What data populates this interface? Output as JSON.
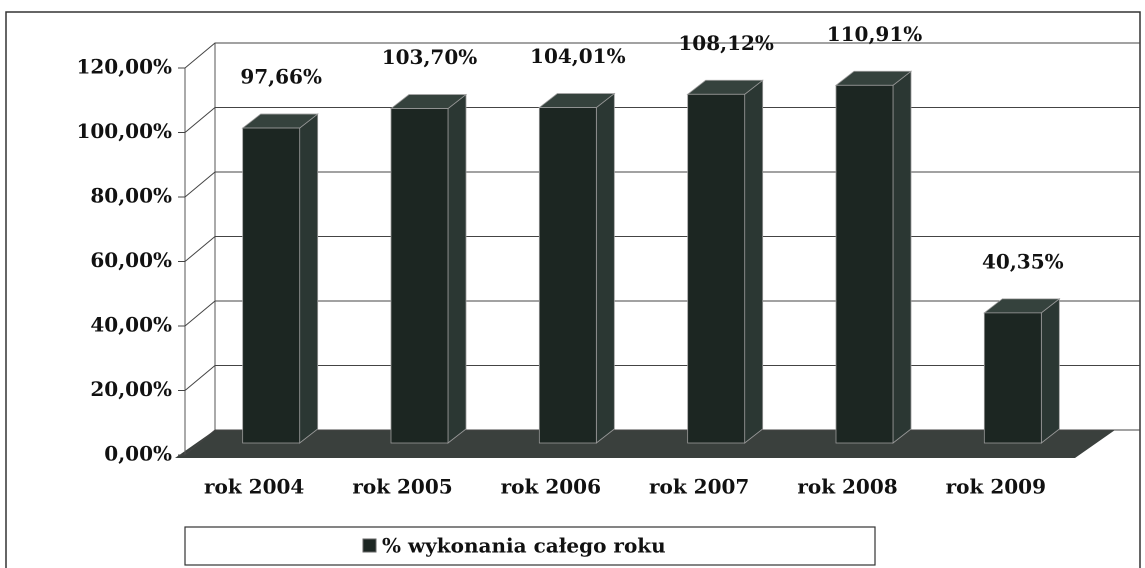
{
  "chart_data": {
    "type": "bar3d",
    "categories": [
      "rok 2004",
      "rok 2005",
      "rok 2006",
      "rok 2007",
      "rok 2008",
      "rok 2009"
    ],
    "series": [
      {
        "name": "% wykonania całego roku",
        "color": "#1c2622",
        "values": [
          97.66,
          103.7,
          104.01,
          108.12,
          110.91,
          40.35
        ],
        "value_labels": [
          "97,66%",
          "103,70%",
          "104,01%",
          "108,12%",
          "110,91%",
          "40,35%"
        ]
      }
    ],
    "ylim": [
      0,
      120
    ],
    "yticks": [
      {
        "value": 0,
        "label": "0,00%"
      },
      {
        "value": 20,
        "label": "20,00%"
      },
      {
        "value": 40,
        "label": "40,00%"
      },
      {
        "value": 60,
        "label": "60,00%"
      },
      {
        "value": 80,
        "label": "80,00%"
      },
      {
        "value": 100,
        "label": "100,00%"
      },
      {
        "value": 120,
        "label": "120,00%"
      }
    ],
    "grid": true
  }
}
